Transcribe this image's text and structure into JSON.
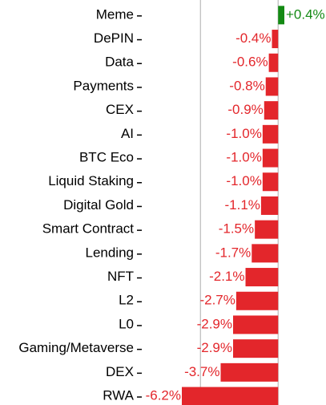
{
  "chart_data": {
    "type": "barh",
    "categories": [
      "Meme",
      "DePIN",
      "Data",
      "Payments",
      "CEX",
      "AI",
      "BTC Eco",
      "Liquid Staking",
      "Digital Gold",
      "Smart Contract",
      "Lending",
      "NFT",
      "L2",
      "L0",
      "Gaming/Metaverse",
      "DEX",
      "RWA"
    ],
    "values": [
      0.4,
      -0.4,
      -0.6,
      -0.8,
      -0.9,
      -1.0,
      -1.0,
      -1.0,
      -1.1,
      -1.5,
      -1.7,
      -2.1,
      -2.7,
      -2.9,
      -2.9,
      -3.7,
      -6.2
    ],
    "value_labels": [
      "+0.4%",
      "-0.4%",
      "-0.6%",
      "-0.8%",
      "-0.9%",
      "-1.0%",
      "-1.0%",
      "-1.0%",
      "-1.1%",
      "-1.5%",
      "-1.7%",
      "-2.1%",
      "-2.7%",
      "-2.9%",
      "-2.9%",
      "-3.7%",
      "-6.2%"
    ],
    "positive_color": "#138a13",
    "negative_color": "#e3262b",
    "xlim": [
      -6.2,
      0.4
    ],
    "vertical_lines": [
      -5,
      0
    ]
  }
}
